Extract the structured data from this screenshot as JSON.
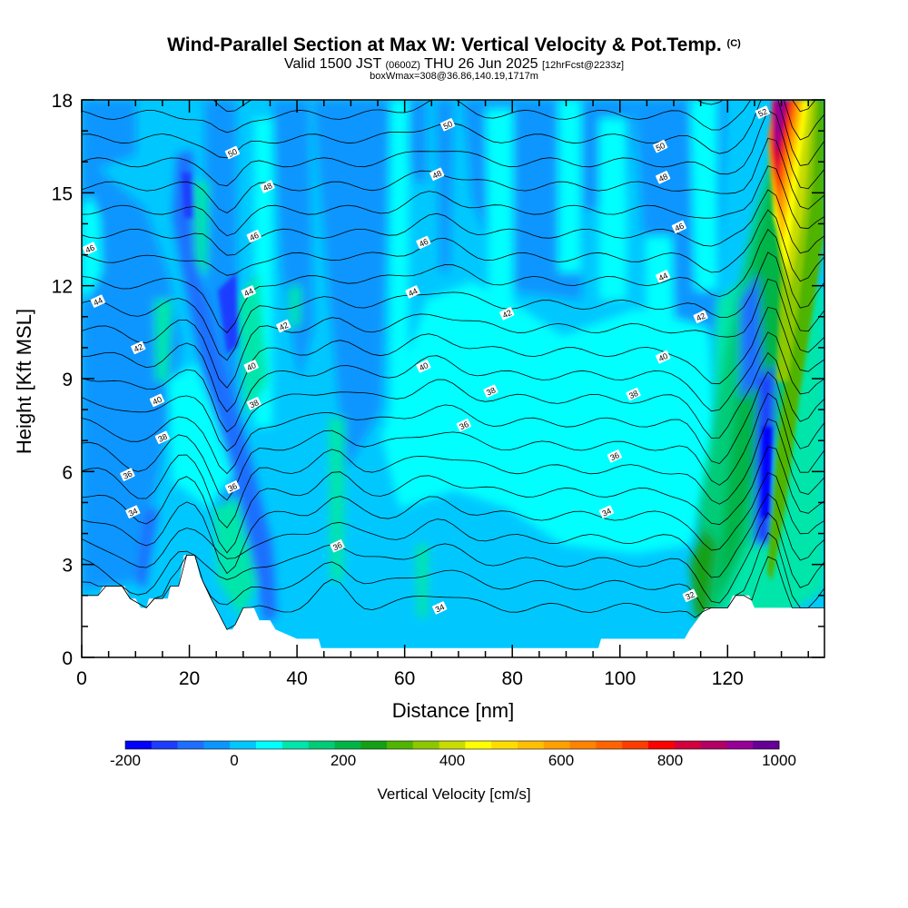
{
  "header": {
    "title": "Wind-Parallel Section at Max W: Vertical Velocity & Pot.Temp.",
    "copyright": "(C)",
    "valid_prefix": "Valid 1500 JST",
    "valid_utc": "(0600Z)",
    "valid_date": "THU 26 Jun 2025",
    "forecast": "[12hrFcst@2233z]",
    "box": "boxWmax=308@36.86,140.19,1717m"
  },
  "chart_data": {
    "type": "heatmap",
    "xlabel": "Distance [nm]",
    "ylabel": "Height [Kft MSL]",
    "xlim": [
      0,
      138
    ],
    "ylim": [
      0,
      18
    ],
    "x_ticks": [
      "0",
      "20",
      "40",
      "60",
      "80",
      "100",
      "120"
    ],
    "y_ticks": [
      "0",
      "3",
      "6",
      "9",
      "12",
      "15",
      "18"
    ],
    "colorbar": {
      "label": "Vertical Velocity [cm/s]",
      "range": [
        -200,
        1000
      ],
      "step": 50,
      "tick_labels": [
        "-200",
        "0",
        "200",
        "400",
        "600",
        "800",
        "1000"
      ],
      "colors": [
        "#0000ff",
        "#1e3cff",
        "#1e6eff",
        "#0a96ff",
        "#00c8ff",
        "#00ffff",
        "#00e6aa",
        "#00cc78",
        "#00b446",
        "#14a014",
        "#50b400",
        "#8cc800",
        "#c8dc00",
        "#ffff00",
        "#ffdc00",
        "#ffbe00",
        "#ffa000",
        "#ff8200",
        "#ff6400",
        "#ff3c00",
        "#ff0000",
        "#d2003c",
        "#b40064",
        "#960096",
        "#640096"
      ]
    },
    "terrain_kft": [
      [
        0,
        2.0
      ],
      [
        3,
        2.0
      ],
      [
        4,
        2.3
      ],
      [
        8,
        2.3
      ],
      [
        9,
        1.9
      ],
      [
        10,
        1.9
      ],
      [
        11,
        1.6
      ],
      [
        12,
        1.6
      ],
      [
        12.5,
        1.9
      ],
      [
        16,
        1.9
      ],
      [
        16.5,
        2.3
      ],
      [
        18,
        2.3
      ],
      [
        19,
        3.3
      ],
      [
        21,
        3.3
      ],
      [
        22,
        2.6
      ],
      [
        23,
        2.3
      ],
      [
        24,
        1.9
      ],
      [
        25,
        1.6
      ],
      [
        26,
        1.2
      ],
      [
        27,
        0.9
      ],
      [
        28,
        0.9
      ],
      [
        29,
        1.2
      ],
      [
        30,
        1.6
      ],
      [
        32,
        1.6
      ],
      [
        33,
        1.2
      ],
      [
        35,
        1.2
      ],
      [
        36,
        0.9
      ],
      [
        40,
        0.6
      ],
      [
        44,
        0.6
      ],
      [
        44.5,
        0.3
      ],
      [
        96,
        0.3
      ],
      [
        96.5,
        0.6
      ],
      [
        112,
        0.6
      ],
      [
        113,
        0.9
      ],
      [
        116,
        1.6
      ],
      [
        120,
        1.6
      ],
      [
        121,
        2.0
      ],
      [
        124,
        2.0
      ],
      [
        125,
        1.6
      ],
      [
        138,
        1.6
      ]
    ],
    "theta_contour_labels": [
      {
        "x": 1.5,
        "y": 13.2,
        "text": "46"
      },
      {
        "x": 3,
        "y": 11.5,
        "text": "44"
      },
      {
        "x": 10.5,
        "y": 10.0,
        "text": "42"
      },
      {
        "x": 14,
        "y": 8.3,
        "text": "40"
      },
      {
        "x": 15,
        "y": 7.1,
        "text": "38"
      },
      {
        "x": 8.5,
        "y": 5.9,
        "text": "36"
      },
      {
        "x": 9.5,
        "y": 4.7,
        "text": "34"
      },
      {
        "x": 28,
        "y": 16.3,
        "text": "50"
      },
      {
        "x": 34.5,
        "y": 15.2,
        "text": "48"
      },
      {
        "x": 32,
        "y": 13.6,
        "text": "46"
      },
      {
        "x": 31,
        "y": 11.8,
        "text": "44"
      },
      {
        "x": 37.5,
        "y": 10.7,
        "text": "42"
      },
      {
        "x": 31.5,
        "y": 9.4,
        "text": "40"
      },
      {
        "x": 32,
        "y": 8.2,
        "text": "38"
      },
      {
        "x": 28,
        "y": 5.5,
        "text": "36"
      },
      {
        "x": 68,
        "y": 17.2,
        "text": "50"
      },
      {
        "x": 66,
        "y": 15.6,
        "text": "48"
      },
      {
        "x": 63.5,
        "y": 13.4,
        "text": "46"
      },
      {
        "x": 61.5,
        "y": 11.8,
        "text": "44"
      },
      {
        "x": 79,
        "y": 11.1,
        "text": "42"
      },
      {
        "x": 63.5,
        "y": 9.4,
        "text": "40"
      },
      {
        "x": 76,
        "y": 8.6,
        "text": "38"
      },
      {
        "x": 71,
        "y": 7.5,
        "text": "36"
      },
      {
        "x": 47.5,
        "y": 3.6,
        "text": "36"
      },
      {
        "x": 66.5,
        "y": 1.6,
        "text": "34"
      },
      {
        "x": 126.5,
        "y": 17.6,
        "text": "52"
      },
      {
        "x": 107.5,
        "y": 16.5,
        "text": "50"
      },
      {
        "x": 108,
        "y": 15.5,
        "text": "48"
      },
      {
        "x": 111,
        "y": 13.9,
        "text": "46"
      },
      {
        "x": 108,
        "y": 12.3,
        "text": "44"
      },
      {
        "x": 115,
        "y": 11.0,
        "text": "42"
      },
      {
        "x": 108,
        "y": 9.7,
        "text": "40"
      },
      {
        "x": 102.5,
        "y": 8.5,
        "text": "38"
      },
      {
        "x": 99,
        "y": 6.5,
        "text": "36"
      },
      {
        "x": 97.5,
        "y": 4.7,
        "text": "34"
      },
      {
        "x": 113,
        "y": 2.0,
        "text": "32"
      }
    ]
  }
}
